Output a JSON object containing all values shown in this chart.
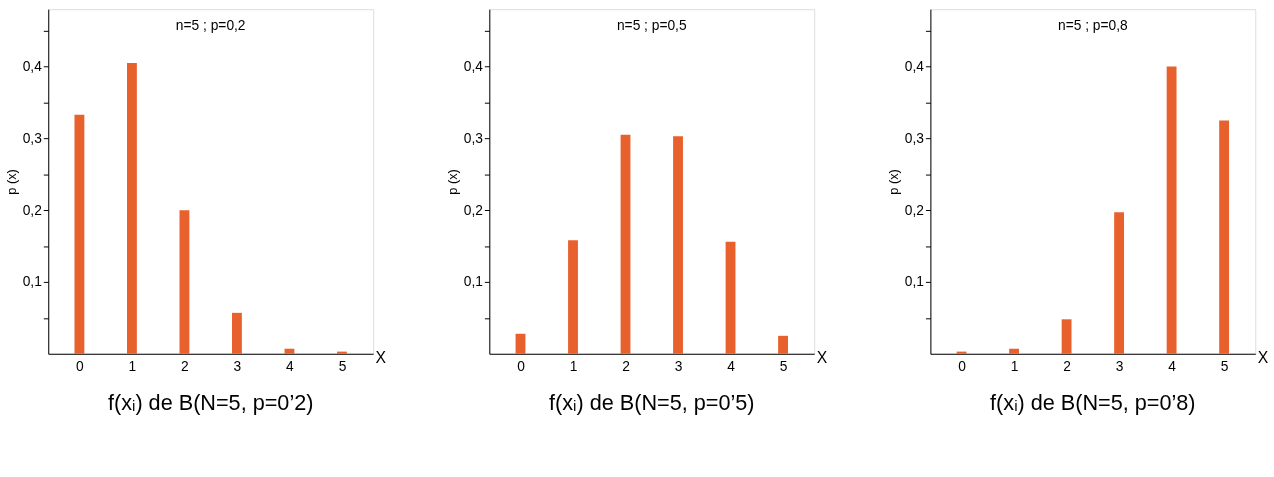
{
  "chart_data": [
    {
      "type": "bar",
      "title": "n=5 ; p=0,2",
      "categories": [
        "0",
        "1",
        "2",
        "3",
        "4",
        "5"
      ],
      "values": [
        0.333,
        0.405,
        0.2,
        0.057,
        0.007,
        0.003
      ],
      "color": "#e8602c",
      "xlabel": "X",
      "ylabel": "p (x)",
      "ylim": [
        0,
        0.48
      ],
      "yticks": [
        {
          "value": 0.05,
          "label": null
        },
        {
          "value": 0.1,
          "label": "0,1"
        },
        {
          "value": 0.15,
          "label": null
        },
        {
          "value": 0.2,
          "label": "0,2"
        },
        {
          "value": 0.25,
          "label": null
        },
        {
          "value": 0.3,
          "label": "0,3"
        },
        {
          "value": 0.35,
          "label": null
        },
        {
          "value": 0.4,
          "label": "0,4"
        },
        {
          "value": 0.45,
          "label": null
        }
      ],
      "annotations": [
        "f(xᵢ) de B(N=5, p=0’2)"
      ]
    },
    {
      "type": "bar",
      "title": "n=5 ; p=0,5",
      "categories": [
        "0",
        "1",
        "2",
        "3",
        "4",
        "5"
      ],
      "values": [
        0.028,
        0.158,
        0.305,
        0.303,
        0.156,
        0.025
      ],
      "color": "#e8602c",
      "xlabel": "X",
      "ylabel": "p (x)",
      "ylim": [
        0,
        0.48
      ],
      "yticks": [
        {
          "value": 0.05,
          "label": null
        },
        {
          "value": 0.1,
          "label": "0,1"
        },
        {
          "value": 0.15,
          "label": null
        },
        {
          "value": 0.2,
          "label": "0,2"
        },
        {
          "value": 0.25,
          "label": null
        },
        {
          "value": 0.3,
          "label": "0,3"
        },
        {
          "value": 0.35,
          "label": null
        },
        {
          "value": 0.4,
          "label": "0,4"
        },
        {
          "value": 0.45,
          "label": null
        }
      ],
      "annotations": [
        "f(xᵢ) de B(N=5, p=0’5)"
      ]
    },
    {
      "type": "bar",
      "title": "n=5 ; p=0,8",
      "categories": [
        "0",
        "1",
        "2",
        "3",
        "4",
        "5"
      ],
      "values": [
        0.003,
        0.007,
        0.048,
        0.197,
        0.4,
        0.325
      ],
      "color": "#e8602c",
      "xlabel": "X",
      "ylabel": "p (x)",
      "ylim": [
        0,
        0.48
      ],
      "yticks": [
        {
          "value": 0.05,
          "label": null
        },
        {
          "value": 0.1,
          "label": "0,1"
        },
        {
          "value": 0.15,
          "label": null
        },
        {
          "value": 0.2,
          "label": "0,2"
        },
        {
          "value": 0.25,
          "label": null
        },
        {
          "value": 0.3,
          "label": "0,3"
        },
        {
          "value": 0.35,
          "label": null
        },
        {
          "value": 0.4,
          "label": "0,4"
        },
        {
          "value": 0.45,
          "label": null
        }
      ],
      "annotations": [
        "f(xᵢ) de B(N=5, p=0’8)"
      ]
    }
  ]
}
